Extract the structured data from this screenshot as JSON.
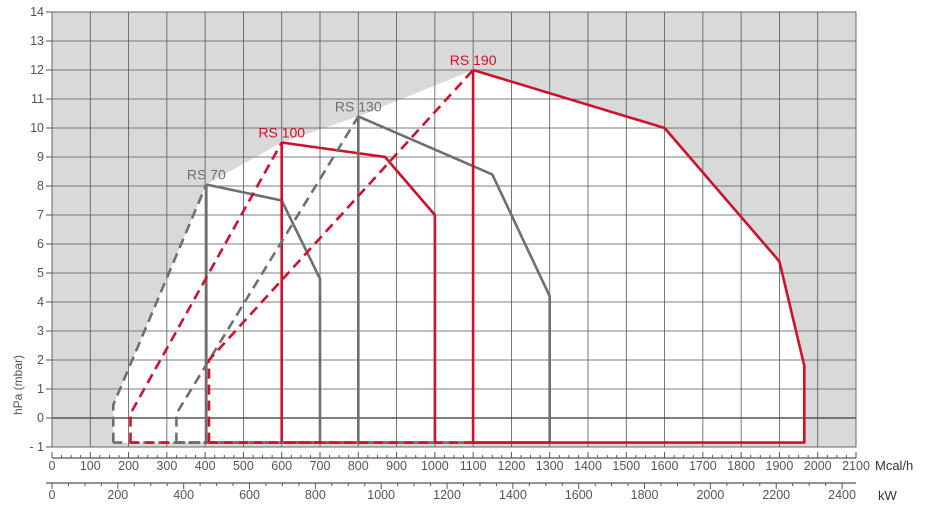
{
  "chart_data": {
    "type": "line",
    "title": "",
    "ylabel": "hPa (mbar)",
    "x_unit_primary": "Mcal/h",
    "x_unit_secondary": "kW",
    "xlim": [
      0,
      2100
    ],
    "ylim": [
      -1,
      14
    ],
    "x_ticks_primary": [
      0,
      100,
      200,
      300,
      400,
      500,
      600,
      700,
      800,
      900,
      1000,
      1100,
      1200,
      1300,
      1400,
      1500,
      1600,
      1700,
      1800,
      1900,
      2000,
      2100
    ],
    "x_ticks_secondary": [
      0,
      200,
      400,
      600,
      800,
      1000,
      1200,
      1400,
      1600,
      1800,
      2000,
      2200,
      2400
    ],
    "y_ticks": [
      -1,
      0,
      1,
      2,
      3,
      4,
      5,
      6,
      7,
      8,
      9,
      10,
      11,
      12,
      13,
      14
    ],
    "y_tick_labels": [
      "- 1",
      "0",
      "1",
      "2",
      "3",
      "4",
      "5",
      "6",
      "7",
      "8",
      "9",
      "10",
      "11",
      "12",
      "13",
      "14"
    ],
    "grid": true,
    "series": [
      {
        "name": "RS 70",
        "color": "#6f6f6f",
        "label_at": [
          403,
          8.05
        ],
        "dashed": [
          [
            160,
            -0.85
          ],
          [
            160,
            0.45
          ],
          [
            403,
            8.05
          ]
        ],
        "solid": [
          [
            403,
            8.05
          ],
          [
            600,
            7.5
          ],
          [
            700,
            4.8
          ],
          [
            700,
            -0.85
          ],
          [
            403,
            -0.85
          ],
          [
            403,
            8.05
          ]
        ],
        "bottom_dashed": [
          [
            160,
            -0.85
          ],
          [
            403,
            -0.85
          ]
        ]
      },
      {
        "name": "RS 100",
        "color": "#d0112b",
        "label_at": [
          600,
          9.5
        ],
        "dashed": [
          [
            205,
            -0.85
          ],
          [
            205,
            0.15
          ],
          [
            600,
            9.5
          ]
        ],
        "solid": [
          [
            600,
            9.5
          ],
          [
            870,
            9.0
          ],
          [
            1000,
            7.0
          ],
          [
            1000,
            -0.85
          ],
          [
            600,
            -0.85
          ],
          [
            600,
            9.5
          ]
        ],
        "bottom_dashed": [
          [
            205,
            -0.85
          ],
          [
            600,
            -0.85
          ]
        ]
      },
      {
        "name": "RS 130",
        "color": "#6f6f6f",
        "label_at": [
          800,
          10.4
        ],
        "dashed": [
          [
            325,
            -0.85
          ],
          [
            325,
            0.15
          ],
          [
            800,
            10.4
          ]
        ],
        "solid": [
          [
            800,
            10.4
          ],
          [
            1150,
            8.4
          ],
          [
            1300,
            4.2
          ],
          [
            1300,
            -0.85
          ],
          [
            800,
            -0.85
          ],
          [
            800,
            10.4
          ]
        ],
        "bottom_dashed": [
          [
            325,
            -0.85
          ],
          [
            800,
            -0.85
          ]
        ]
      },
      {
        "name": "RS 190",
        "color": "#d0112b",
        "label_at": [
          1100,
          12.0
        ],
        "dashed": [
          [
            410,
            -0.85
          ],
          [
            410,
            2.0
          ],
          [
            1100,
            12.0
          ]
        ],
        "solid": [
          [
            1100,
            12.0
          ],
          [
            1600,
            10.0
          ],
          [
            1900,
            5.4
          ],
          [
            1965,
            1.8
          ],
          [
            1965,
            -0.85
          ],
          [
            1100,
            -0.85
          ],
          [
            1100,
            12.0
          ]
        ],
        "bottom_dashed": [
          [
            410,
            -0.85
          ],
          [
            1100,
            -0.85
          ]
        ]
      }
    ]
  }
}
